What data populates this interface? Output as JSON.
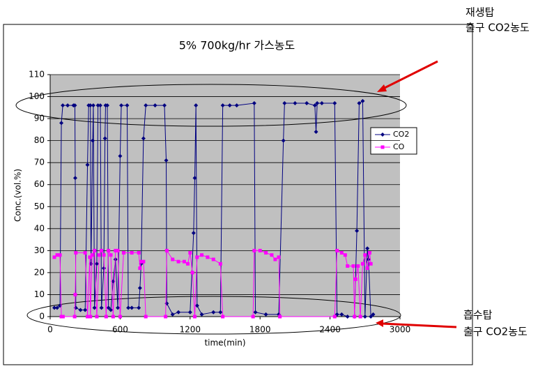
{
  "chart_data": {
    "type": "line",
    "title": "5% 700kg/hr 가스농도",
    "x_label": "time(min)",
    "y_label": "Conc.(vol.%)",
    "xlim": [
      0,
      3000
    ],
    "xticks": [
      0,
      600,
      1200,
      1800,
      2400,
      3000
    ],
    "ylim": [
      0,
      110
    ],
    "yticks": [
      0,
      10,
      20,
      30,
      40,
      50,
      60,
      70,
      80,
      90,
      100,
      110
    ],
    "grid": true,
    "series": [
      {
        "name": "CO2",
        "color": "#000080",
        "x": [
          36,
          60,
          84,
          96,
          108,
          150,
          200,
          212,
          215,
          220,
          260,
          300,
          320,
          330,
          345,
          350,
          365,
          370,
          380,
          400,
          410,
          430,
          440,
          460,
          470,
          475,
          490,
          500,
          520,
          540,
          560,
          580,
          600,
          610,
          660,
          670,
          700,
          760,
          770,
          780,
          800,
          820,
          900,
          980,
          995,
          1000,
          1050,
          1100,
          1200,
          1230,
          1240,
          1250,
          1260,
          1300,
          1400,
          1460,
          1480,
          1540,
          1600,
          1750,
          1760,
          1850,
          1960,
          2000,
          2010,
          2100,
          2200,
          2270,
          2280,
          2290,
          2330,
          2440,
          2460,
          2500,
          2550,
          2610,
          2630,
          2650,
          2680,
          2700,
          2720,
          2730,
          2750,
          2770
        ],
        "values": [
          4,
          4,
          5,
          88,
          96,
          96,
          96,
          96,
          63,
          4,
          3,
          3,
          69,
          96,
          96,
          24,
          80,
          96,
          4,
          24,
          96,
          96,
          4,
          22,
          81,
          96,
          96,
          4,
          3,
          16,
          26,
          4,
          73,
          96,
          96,
          4,
          4,
          4,
          13,
          24,
          81,
          96,
          96,
          96,
          71,
          6,
          1,
          2,
          2,
          38,
          63,
          96,
          5,
          1,
          2,
          2,
          96,
          96,
          96,
          97,
          2,
          1,
          1,
          80,
          97,
          97,
          97,
          96,
          84,
          97,
          97,
          97,
          1,
          1,
          0,
          0,
          39,
          97,
          98,
          0,
          31,
          26,
          0,
          1
        ]
      },
      {
        "name": "CO",
        "color": "#ff00ff",
        "x": [
          36,
          60,
          84,
          96,
          110,
          210,
          215,
          220,
          300,
          320,
          340,
          345,
          360,
          380,
          400,
          420,
          440,
          460,
          480,
          500,
          520,
          540,
          560,
          580,
          600,
          630,
          700,
          760,
          770,
          780,
          800,
          820,
          990,
          1000,
          1050,
          1100,
          1150,
          1180,
          1200,
          1220,
          1240,
          1260,
          1300,
          1350,
          1400,
          1460,
          1480,
          1740,
          1750,
          1800,
          1850,
          1900,
          1930,
          1960,
          1970,
          2440,
          2460,
          2500,
          2530,
          2550,
          2600,
          2610,
          2620,
          2640,
          2660,
          2680,
          2700,
          2720,
          2740,
          2750
        ],
        "values": [
          27,
          28,
          28,
          0,
          0,
          0,
          10,
          29,
          29,
          0,
          27,
          0,
          28,
          30,
          0,
          28,
          30,
          28,
          0,
          30,
          28,
          0,
          30,
          30,
          0,
          29,
          29,
          29,
          22,
          25,
          25,
          0,
          0,
          30,
          26,
          25,
          25,
          24,
          29,
          20,
          0,
          27,
          28,
          27,
          26,
          24,
          0,
          0,
          30,
          30,
          29,
          28,
          26,
          27,
          0,
          0,
          30,
          29,
          28,
          23,
          23,
          0,
          17,
          23,
          0,
          24,
          28,
          22,
          29,
          24
        ]
      }
    ]
  },
  "annotations": [
    "재생탑",
    "출구 CO2농도",
    "흡수탑",
    "출구 CO2농도"
  ]
}
